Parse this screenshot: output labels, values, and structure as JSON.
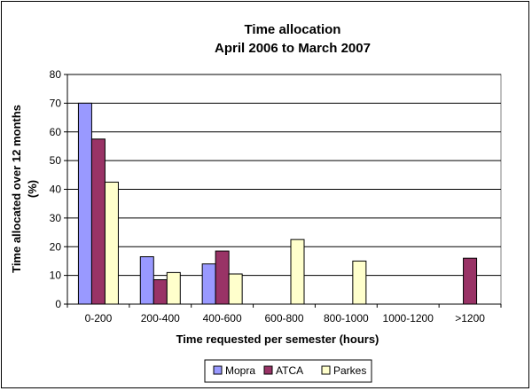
{
  "chart_data": {
    "type": "bar",
    "title": [
      "Time allocation",
      "April 2006 to March 2007"
    ],
    "xlabel": "Time requested per semester (hours)",
    "ylabel": [
      "Time allocated over 12 months",
      "(%)"
    ],
    "ylim": [
      0,
      80
    ],
    "yticks": [
      0,
      10,
      20,
      30,
      40,
      50,
      60,
      70,
      80
    ],
    "categories": [
      "0-200",
      "200-400",
      "400-600",
      "600-800",
      "800-1000",
      "1000-1200",
      ">1200"
    ],
    "series": [
      {
        "name": "Mopra",
        "color": "#9999FF",
        "values": [
          70,
          16.5,
          14,
          0,
          0,
          0,
          0
        ]
      },
      {
        "name": "ATCA",
        "color": "#993366",
        "values": [
          57.5,
          8.5,
          18.5,
          0,
          0,
          0,
          16
        ]
      },
      {
        "name": "Parkes",
        "color": "#FFFFCC",
        "values": [
          42.5,
          11,
          10.5,
          22.5,
          15,
          0,
          0
        ]
      }
    ],
    "legend": "bottom"
  }
}
